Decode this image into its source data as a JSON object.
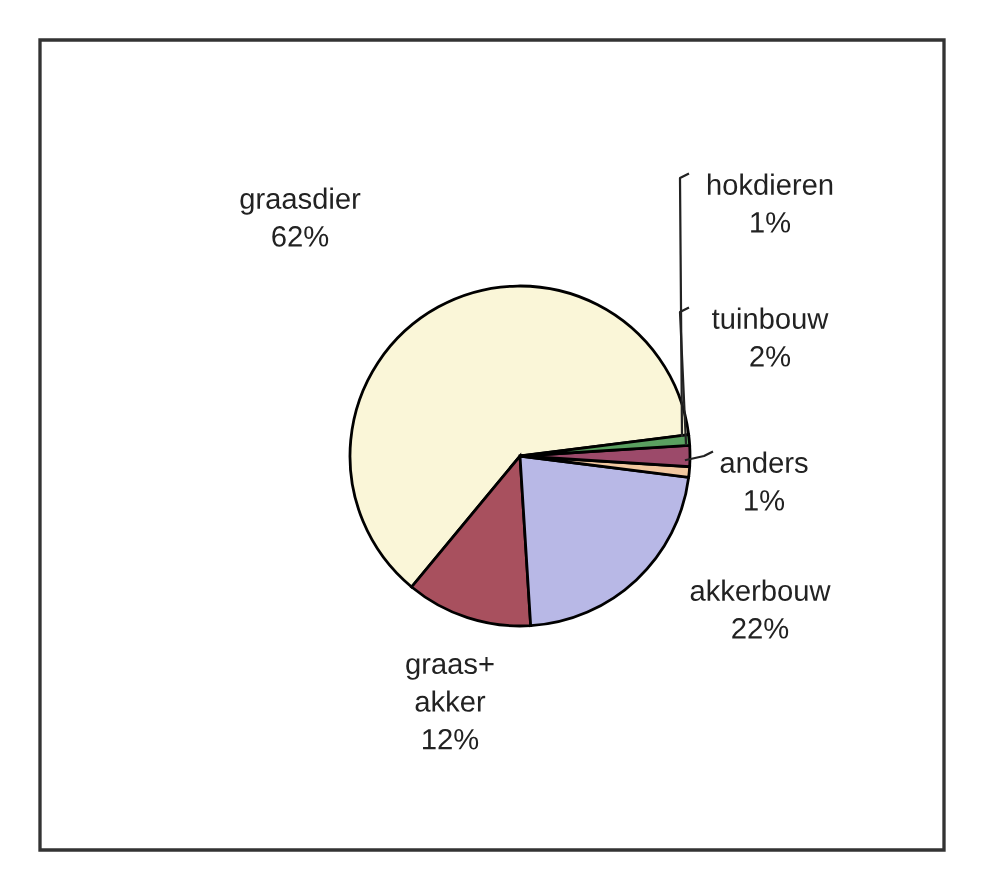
{
  "chart_data": {
    "type": "pie",
    "categories": [
      "graasdier",
      "graas+\nakker",
      "akkerbouw",
      "anders",
      "tuinbouw",
      "hokdieren"
    ],
    "values": [
      62,
      12,
      22,
      1,
      2,
      1
    ],
    "value_labels": [
      "62%",
      "12%",
      "22%",
      "1%",
      "2%",
      "1%"
    ],
    "colors": [
      "#faf6d8",
      "#a8505e",
      "#b8b8e6",
      "#f2c8a0",
      "#9c4a6a",
      "#5aa060"
    ]
  }
}
